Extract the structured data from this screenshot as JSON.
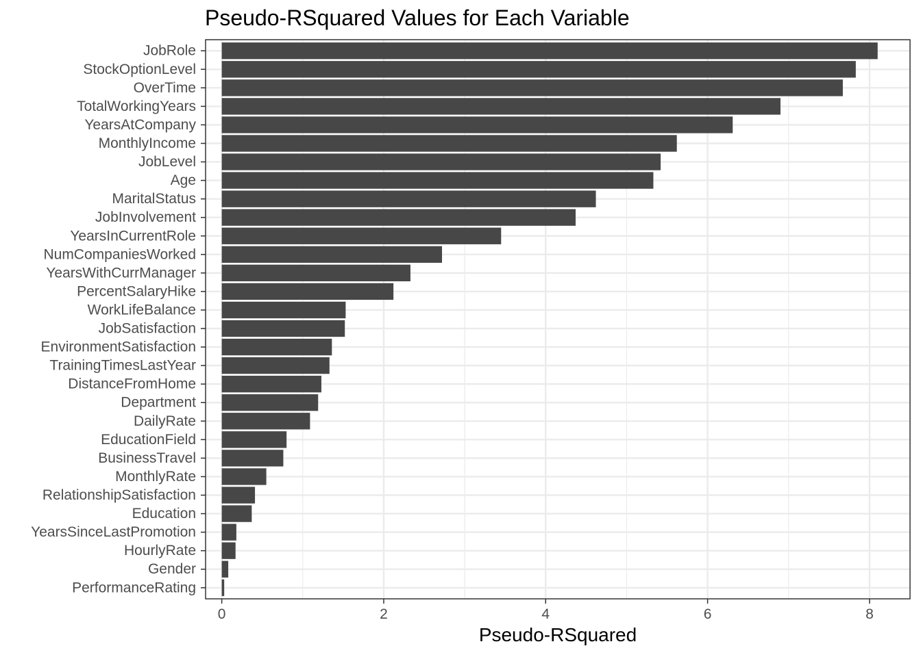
{
  "chart_data": {
    "type": "bar",
    "orientation": "horizontal",
    "title": "Pseudo-RSquared Values for Each Variable",
    "xlabel": "Pseudo-RSquared",
    "ylabel": "",
    "xlim": [
      -0.2,
      8.5
    ],
    "x_ticks": [
      0,
      2,
      4,
      6,
      8
    ],
    "grid": true,
    "bar_color": "#474747",
    "grid_color": "#ebebeb",
    "categories": [
      "JobRole",
      "StockOptionLevel",
      "OverTime",
      "TotalWorkingYears",
      "YearsAtCompany",
      "MonthlyIncome",
      "JobLevel",
      "Age",
      "MaritalStatus",
      "JobInvolvement",
      "YearsInCurrentRole",
      "NumCompaniesWorked",
      "YearsWithCurrManager",
      "PercentSalaryHike",
      "WorkLifeBalance",
      "JobSatisfaction",
      "EnvironmentSatisfaction",
      "TrainingTimesLastYear",
      "DistanceFromHome",
      "Department",
      "DailyRate",
      "EducationField",
      "BusinessTravel",
      "MonthlyRate",
      "RelationshipSatisfaction",
      "Education",
      "YearsSinceLastPromotion",
      "HourlyRate",
      "Gender",
      "PerformanceRating"
    ],
    "values": [
      8.1,
      7.83,
      7.67,
      6.9,
      6.31,
      5.62,
      5.42,
      5.33,
      4.62,
      4.37,
      3.45,
      2.72,
      2.33,
      2.12,
      1.53,
      1.52,
      1.36,
      1.33,
      1.23,
      1.19,
      1.09,
      0.8,
      0.76,
      0.55,
      0.41,
      0.37,
      0.18,
      0.17,
      0.08,
      0.03
    ]
  }
}
